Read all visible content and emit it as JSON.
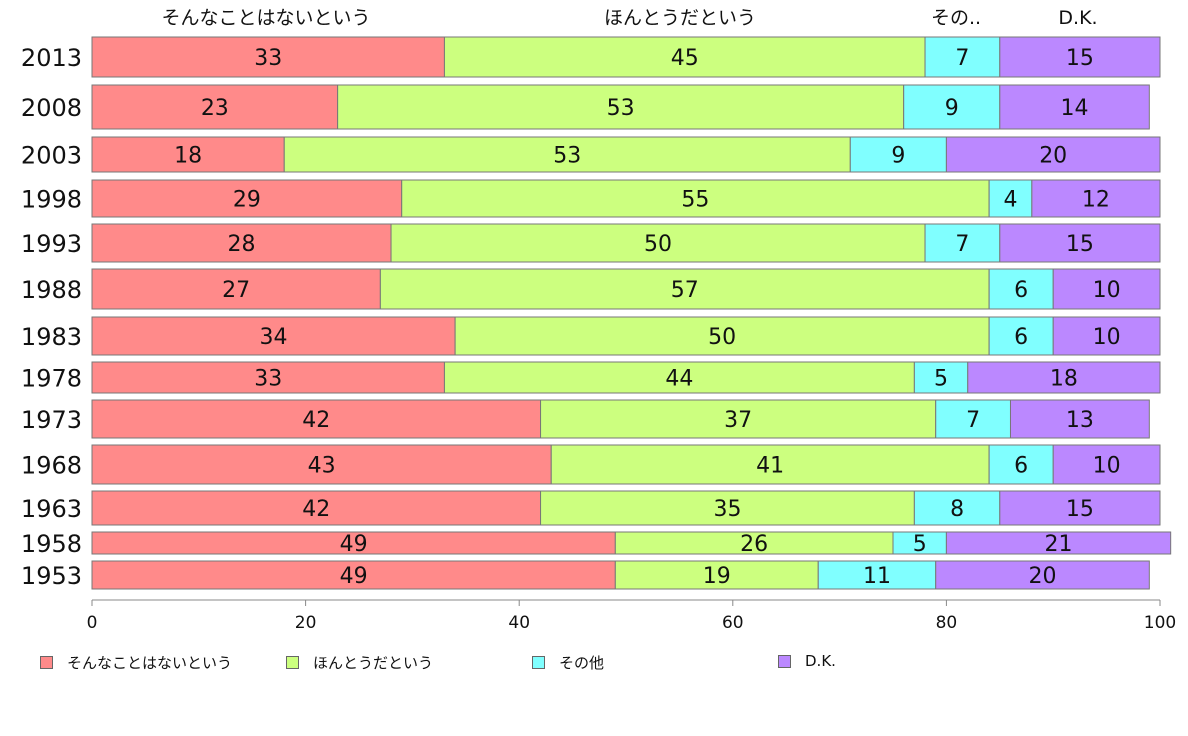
{
  "chart_data": {
    "type": "bar",
    "orientation": "horizontal",
    "stacked": true,
    "categories": [
      "2013",
      "2008",
      "2003",
      "1998",
      "1993",
      "1988",
      "1983",
      "1978",
      "1973",
      "1968",
      "1963",
      "1958",
      "1953"
    ],
    "series": [
      {
        "name": "そんなことはないという",
        "color": "#ff8a8a",
        "values": [
          33,
          23,
          18,
          29,
          28,
          27,
          34,
          33,
          42,
          43,
          42,
          49,
          49
        ]
      },
      {
        "name": "ほんとうだという",
        "color": "#ccff7f",
        "values": [
          45,
          53,
          53,
          55,
          50,
          57,
          50,
          44,
          37,
          41,
          35,
          26,
          19
        ]
      },
      {
        "name": "その他",
        "color": "#80ffff",
        "values": [
          7,
          9,
          9,
          4,
          7,
          6,
          6,
          5,
          7,
          6,
          8,
          5,
          11
        ]
      },
      {
        "name": "D.K.",
        "color": "#bb88ff",
        "values": [
          15,
          14,
          20,
          12,
          15,
          10,
          10,
          18,
          13,
          10,
          15,
          21,
          20
        ]
      }
    ],
    "top_labels": [
      "そんなことはないという",
      "ほんとうだという",
      "その..",
      "D.K."
    ],
    "xlim": [
      0,
      100
    ],
    "xticks": [
      "0",
      "20",
      "40",
      "60",
      "80",
      "100"
    ],
    "grid": false,
    "legend_position": "bottom"
  },
  "legend": {
    "items": [
      {
        "label": "そんなことはないという",
        "color": "#ff8a8a"
      },
      {
        "label": "ほんとうだという",
        "color": "#ccff7f"
      },
      {
        "label": "その他",
        "color": "#80ffff"
      },
      {
        "label": "D.K.",
        "color": "#bb88ff"
      }
    ]
  }
}
